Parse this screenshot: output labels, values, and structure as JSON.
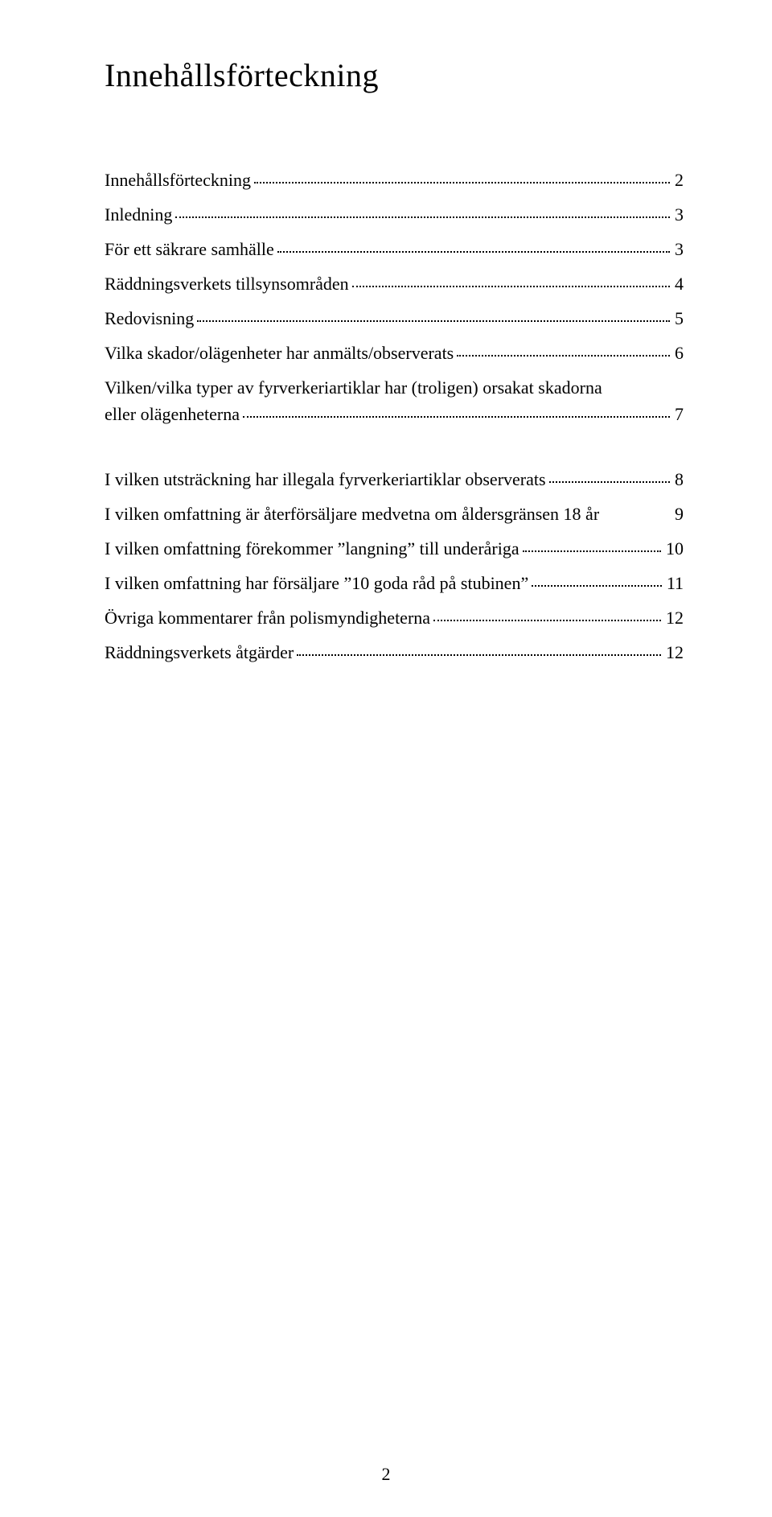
{
  "title": "Innehållsförteckning",
  "page_number": "2",
  "entries": [
    {
      "label": "Innehållsförteckning",
      "page": "2",
      "layout": "dots"
    },
    {
      "label": "Inledning",
      "page": "3",
      "layout": "dots"
    },
    {
      "label": "För ett säkrare samhälle",
      "page": "3",
      "layout": "dots"
    },
    {
      "label": "Räddningsverkets tillsynsområden",
      "page": "4",
      "layout": "dots"
    },
    {
      "label": "Redovisning",
      "page": "5",
      "layout": "dots"
    },
    {
      "label": "Vilka skador/olägenheter har anmälts/observerats",
      "page": "6",
      "layout": "dots"
    },
    {
      "label_line1": "Vilken/vilka typer av fyrverkeriartiklar har (troligen) orsakat skadorna",
      "label_line2": "eller olägenheterna",
      "page": "7",
      "layout": "twoline"
    },
    {
      "label": "I vilken utsträckning har illegala fyrverkeriartiklar observerats",
      "page": "8",
      "layout": "dots",
      "gap_before": true
    },
    {
      "label": "I vilken omfattning är återförsäljare medvetna om åldersgränsen 18 år",
      "page": "9",
      "layout": "nodots"
    },
    {
      "label": "I vilken omfattning förekommer ”langning” till underåriga",
      "page": "10",
      "layout": "dots"
    },
    {
      "label": "I vilken omfattning har försäljare ”10 goda råd på stubinen”",
      "page": "11",
      "layout": "dots"
    },
    {
      "label": "Övriga kommentarer från polismyndigheterna",
      "page": "12",
      "layout": "dots"
    },
    {
      "label": "Räddningsverkets åtgärder",
      "page": "12",
      "layout": "dots"
    }
  ]
}
